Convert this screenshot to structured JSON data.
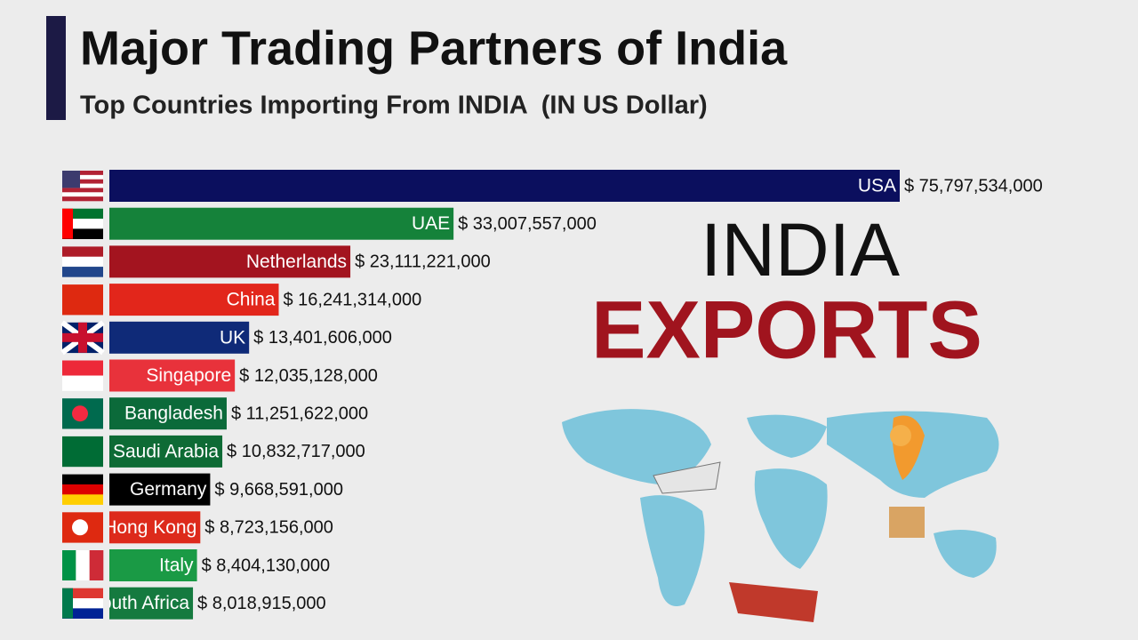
{
  "chart_data": {
    "type": "bar",
    "orientation": "horizontal",
    "title": "Major Trading Partners of India",
    "subtitle": "Top Countries Importing From INDIA  (IN US Dollar)",
    "annotations": [
      "INDIA",
      "EXPORTS"
    ],
    "categories": [
      "USA",
      "UAE",
      "Netherlands",
      "China",
      "UK",
      "Singapore",
      "Bangladesh",
      "Saudi Arabia",
      "Germany",
      "Hong Kong",
      "Italy",
      "South Africa"
    ],
    "values": [
      75797534000,
      33007557000,
      23111221000,
      16241314000,
      13401606000,
      12035128000,
      11251622000,
      10832717000,
      9668591000,
      8723156000,
      8404130000,
      8018915000
    ],
    "value_labels": [
      "$ 75,797,534,000",
      "$ 33,007,557,000",
      "$ 23,111,221,000",
      "$ 16,241,314,000",
      "$ 13,401,606,000",
      "$ 12,035,128,000",
      "$ 11,251,622,000",
      "$ 10,832,717,000",
      "$ 9,668,591,000",
      "$ 8,723,156,000",
      "$ 8,404,130,000",
      "$ 8,018,915,000"
    ],
    "colors": [
      "#0b0f5e",
      "#15823a",
      "#a3141f",
      "#e2261b",
      "#0f2a78",
      "#e8323b",
      "#0b6a3a",
      "#0e6b35",
      "#000000",
      "#dd2a1b",
      "#1a9a45",
      "#157a3f"
    ]
  }
}
